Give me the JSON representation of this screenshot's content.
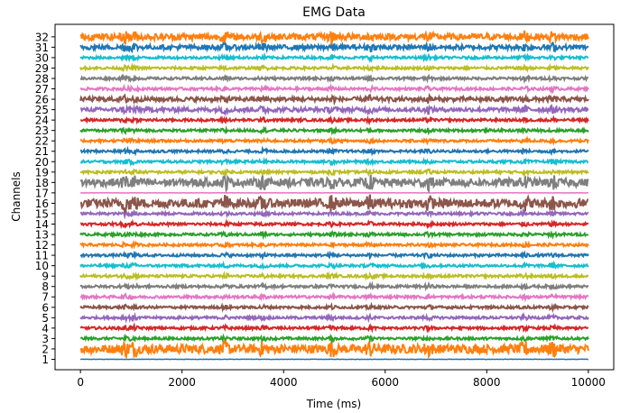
{
  "chart_data": {
    "type": "line",
    "title": "EMG Data",
    "xlabel": "Time (ms)",
    "ylabel": "Channels",
    "xlim": [
      -500,
      10500
    ],
    "xticks": [
      0,
      2000,
      4000,
      6000,
      8000,
      10000
    ],
    "ylim": [
      0,
      33.2
    ],
    "channels": [
      "1",
      "2",
      "3",
      "4",
      "5",
      "6",
      "7",
      "8",
      "9",
      "10",
      "11",
      "12",
      "13",
      "14",
      "15",
      "16",
      "17",
      "18",
      "19",
      "20",
      "21",
      "22",
      "23",
      "24",
      "25",
      "26",
      "27",
      "28",
      "29",
      "30",
      "31",
      "32"
    ],
    "series_colors": [
      "#1f77b4",
      "#ff7f0e",
      "#2ca02c",
      "#d62728",
      "#9467bd",
      "#8c564b",
      "#e377c2",
      "#7f7f7f",
      "#bcbd22",
      "#17becf"
    ],
    "time_range_ms": [
      0,
      10000
    ],
    "grid": false,
    "legend": "none"
  }
}
